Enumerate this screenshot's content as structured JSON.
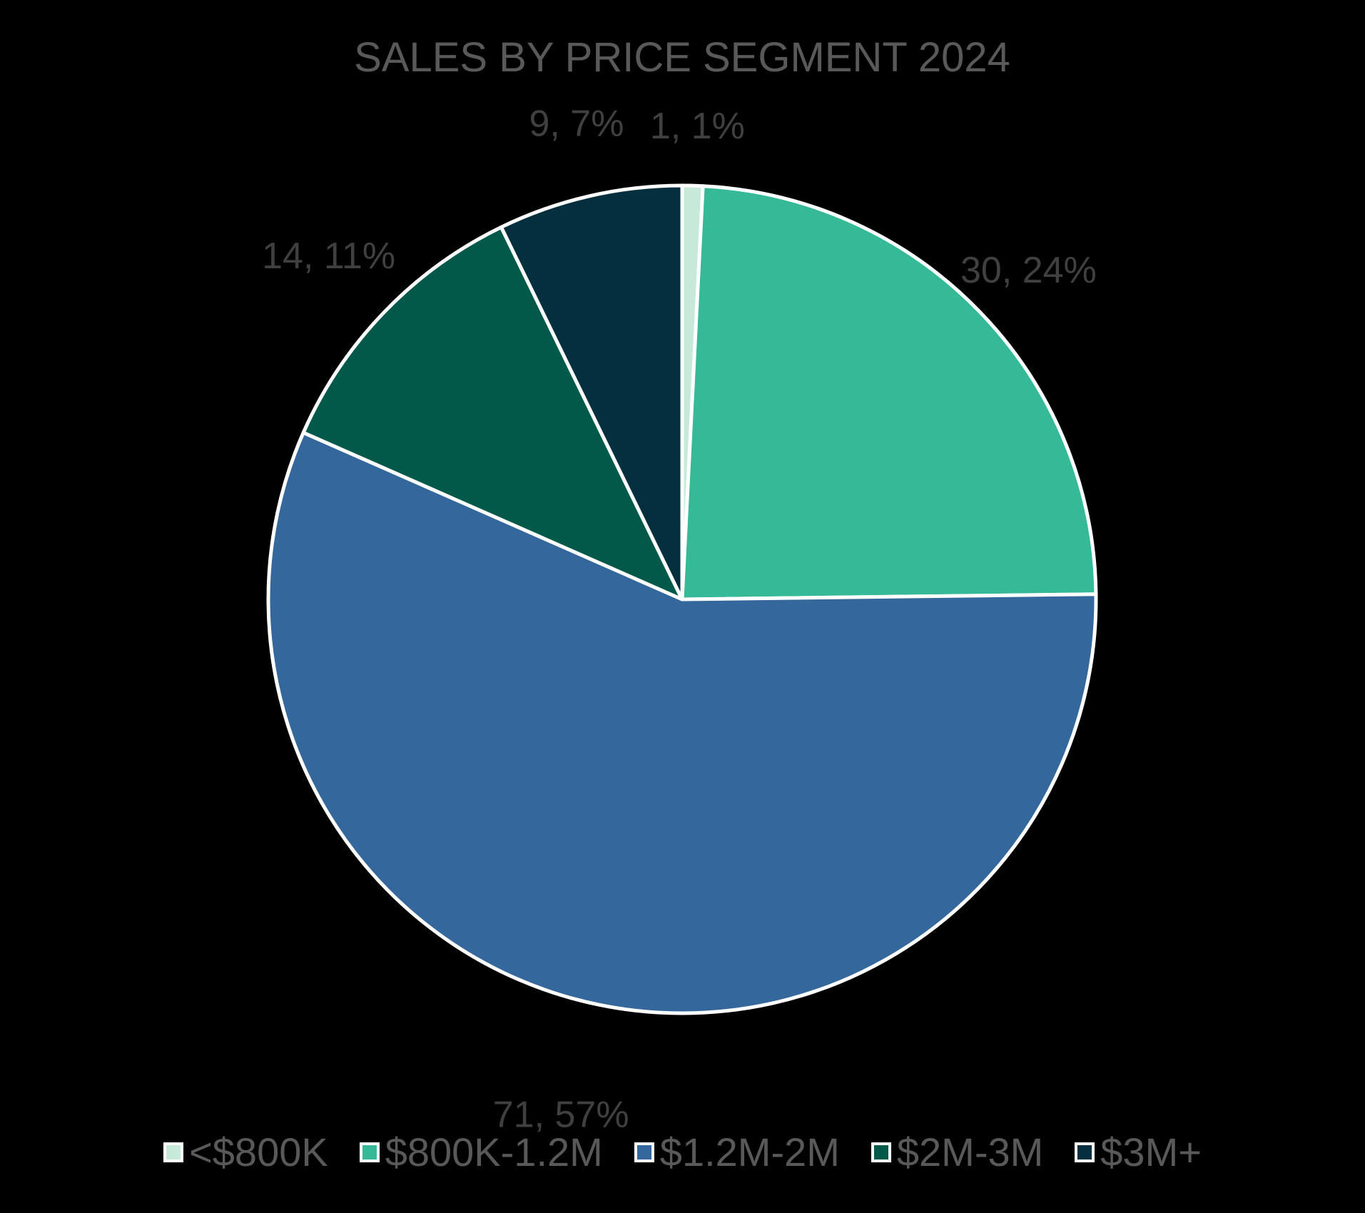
{
  "chart_data": {
    "type": "pie",
    "title": "SALES BY PRICE SEGMENT 2024",
    "categories": [
      "<$800K",
      "$800K-1.2M",
      "$1.2M-2M",
      "$2M-3M",
      "$3M+"
    ],
    "values": [
      1,
      30,
      71,
      14,
      9
    ],
    "percentages": [
      1,
      24,
      57,
      11,
      7
    ],
    "data_labels": [
      "1, 1%",
      "30, 24%",
      "71, 57%",
      "14, 11%",
      "9, 7%"
    ],
    "colors": [
      "#c7e9da",
      "#35b996",
      "#34679b",
      "#02594a",
      "#032f3f"
    ],
    "legend_position": "bottom",
    "start_angle_deg": 0,
    "direction": "clockwise"
  }
}
